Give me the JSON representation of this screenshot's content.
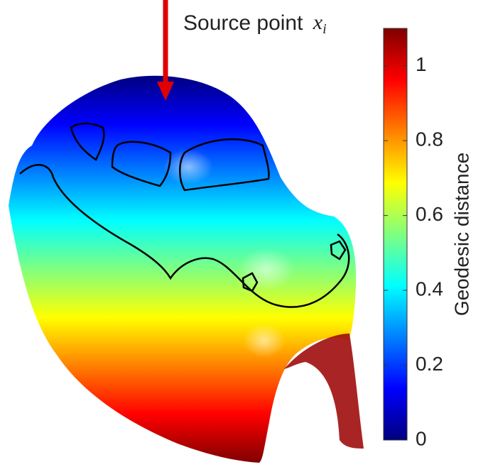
{
  "chart_data": {
    "type": "colormap-surface",
    "annotation": {
      "text": "Source point",
      "symbol": "x",
      "subscript": "i",
      "color": "#e00000"
    },
    "colorbar": {
      "label": "Geodesic distance",
      "ylim": [
        0,
        1.1
      ],
      "yticks": [
        0,
        0.2,
        0.4,
        0.6,
        0.8,
        1
      ],
      "colormap": [
        "#00007f",
        "#0000ff",
        "#0080ff",
        "#00ffff",
        "#80ff80",
        "#ffff00",
        "#ff8000",
        "#ff0000",
        "#7f0000"
      ]
    }
  }
}
